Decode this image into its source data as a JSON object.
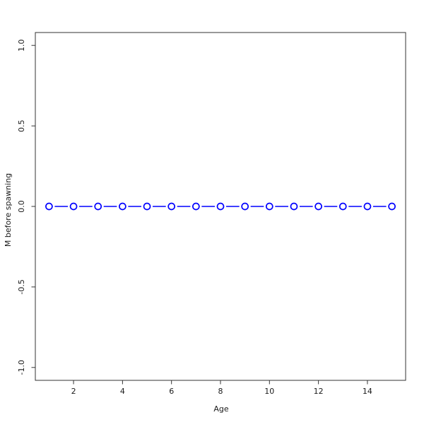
{
  "chart_data": {
    "type": "line",
    "title": "",
    "xlabel": "Age",
    "ylabel": "M before spawning",
    "x": [
      1,
      2,
      3,
      4,
      5,
      6,
      7,
      8,
      9,
      10,
      11,
      12,
      13,
      14,
      15
    ],
    "y": [
      0,
      0,
      0,
      0,
      0,
      0,
      0,
      0,
      0,
      0,
      0,
      0,
      0,
      0,
      0
    ],
    "series": [
      {
        "name": "M before spawning",
        "values": [
          0,
          0,
          0,
          0,
          0,
          0,
          0,
          0,
          0,
          0,
          0,
          0,
          0,
          0,
          0
        ]
      }
    ],
    "xlim": [
      0.44,
      15.56
    ],
    "ylim": [
      -1.08,
      1.08
    ],
    "xticks": [
      2,
      4,
      6,
      8,
      10,
      12,
      14
    ],
    "xtick_labels": [
      "2",
      "4",
      "6",
      "8",
      "10",
      "12",
      "14"
    ],
    "yticks": [
      -1.0,
      -0.5,
      0.0,
      0.5,
      1.0
    ],
    "ytick_labels": [
      "-1.0",
      "-0.5",
      "0.0",
      "0.5",
      "1.0"
    ],
    "grid": false,
    "legend": "none",
    "marker": "open-circle",
    "line_color": "#0000ff",
    "marker_color": "#0000ff",
    "axis_color": "#333333",
    "text_color": "#1a1a1a",
    "background_color": "#ffffff"
  }
}
